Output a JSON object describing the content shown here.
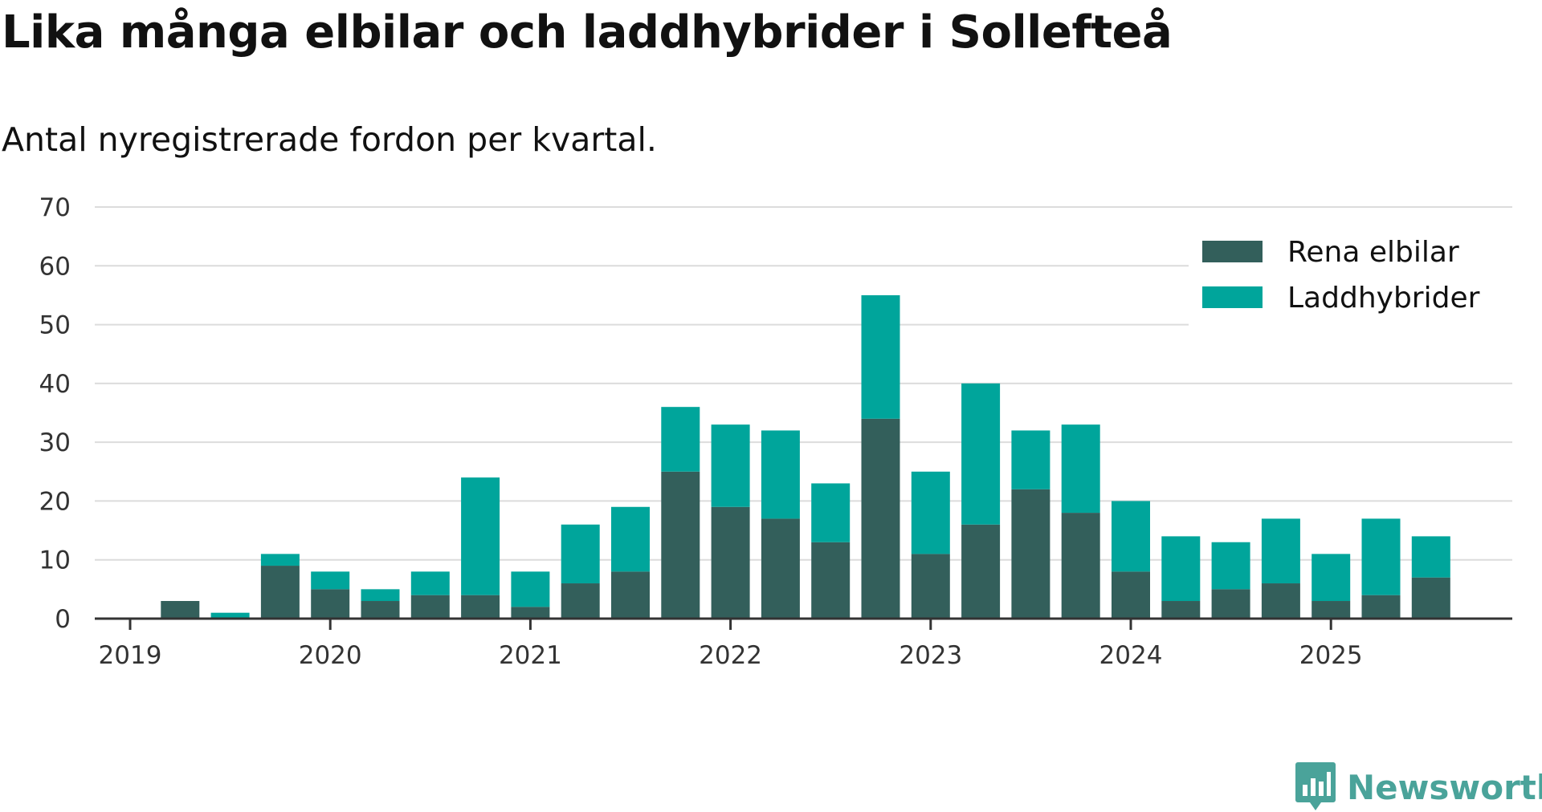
{
  "chart_data": {
    "type": "bar",
    "stacked": true,
    "title": "Lika många elbilar och laddhybrider i Sollefteå",
    "subtitle": "Antal nyregistrerade fordon per kvartal.",
    "xlabel": "",
    "ylabel": "",
    "ylim": [
      0,
      70
    ],
    "y_ticks": [
      "0",
      "10",
      "20",
      "30",
      "40",
      "50",
      "60",
      "70"
    ],
    "x_tick_labels": [
      "2019",
      "2020",
      "2021",
      "2022",
      "2023",
      "2024",
      "2025"
    ],
    "categories": [
      "2019 Q1",
      "2019 Q2",
      "2019 Q3",
      "2019 Q4",
      "2020 Q1",
      "2020 Q2",
      "2020 Q3",
      "2020 Q4",
      "2021 Q1",
      "2021 Q2",
      "2021 Q3",
      "2021 Q4",
      "2022 Q1",
      "2022 Q2",
      "2022 Q3",
      "2022 Q4",
      "2023 Q1",
      "2023 Q2",
      "2023 Q3",
      "2023 Q4",
      "2024 Q1",
      "2024 Q2",
      "2024 Q3",
      "2024 Q4",
      "2025 Q1",
      "2025 Q2",
      "2025 Q3"
    ],
    "series": [
      {
        "name": "Rena elbilar",
        "color": "#335f5b",
        "values": [
          0,
          3,
          0,
          9,
          5,
          3,
          4,
          4,
          2,
          6,
          8,
          25,
          19,
          17,
          13,
          34,
          11,
          16,
          22,
          18,
          8,
          3,
          5,
          6,
          3,
          4,
          7
        ]
      },
      {
        "name": "Laddhybrider",
        "color": "#00a59b",
        "values": [
          0,
          0,
          1,
          2,
          3,
          2,
          4,
          20,
          6,
          10,
          11,
          11,
          14,
          15,
          10,
          21,
          14,
          24,
          10,
          15,
          12,
          11,
          8,
          11,
          8,
          13,
          7
        ]
      }
    ],
    "legend_position": "top-right",
    "grid": true
  },
  "branding": {
    "name": "Newsworthy",
    "color": "#4aa39a"
  }
}
